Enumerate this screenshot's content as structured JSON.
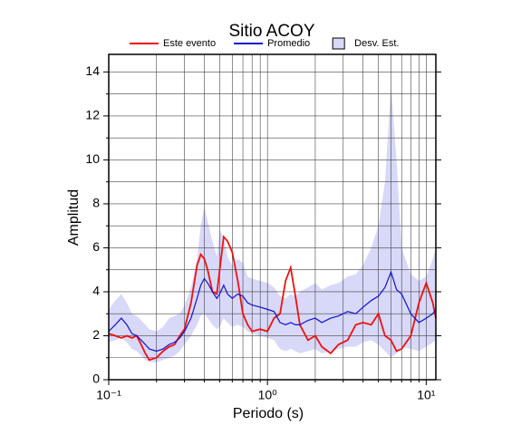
{
  "chart_data": {
    "type": "line",
    "title": "Sitio ACOY",
    "xlabel": "Periodo (s)",
    "ylabel": "Amplitud",
    "x": [
      0.1,
      0.11,
      0.12,
      0.13,
      0.14,
      0.15,
      0.16,
      0.17,
      0.18,
      0.2,
      0.22,
      0.24,
      0.26,
      0.28,
      0.3,
      0.33,
      0.36,
      0.38,
      0.4,
      0.42,
      0.45,
      0.48,
      0.5,
      0.53,
      0.56,
      0.6,
      0.65,
      0.7,
      0.75,
      0.8,
      0.9,
      1.0,
      1.1,
      1.2,
      1.3,
      1.4,
      1.5,
      1.6,
      1.8,
      2.0,
      2.2,
      2.5,
      2.8,
      3.2,
      3.6,
      4.0,
      4.5,
      5.0,
      5.5,
      6.0,
      6.5,
      7.0,
      8.0,
      9.0,
      10.0,
      11.0,
      11.5
    ],
    "series": [
      {
        "name": "Este evento",
        "color": "#ee1111",
        "values": [
          2.1,
          2.0,
          1.9,
          2.0,
          1.9,
          2.0,
          1.6,
          1.2,
          0.9,
          1.0,
          1.3,
          1.5,
          1.6,
          2.0,
          2.3,
          3.5,
          5.2,
          5.7,
          5.5,
          5.0,
          4.0,
          3.9,
          5.0,
          6.5,
          6.3,
          5.8,
          4.5,
          3.0,
          2.5,
          2.2,
          2.3,
          2.2,
          2.8,
          3.0,
          4.5,
          5.1,
          3.8,
          2.5,
          1.8,
          2.0,
          1.5,
          1.2,
          1.6,
          1.8,
          2.5,
          2.6,
          2.5,
          3.0,
          2.0,
          1.8,
          1.3,
          1.4,
          2.0,
          3.5,
          4.4,
          3.5,
          2.8
        ]
      },
      {
        "name": "Promedio",
        "color": "#1111cc",
        "values": [
          2.2,
          2.5,
          2.8,
          2.5,
          2.1,
          2.0,
          1.8,
          1.6,
          1.4,
          1.3,
          1.4,
          1.6,
          1.7,
          1.9,
          2.2,
          2.8,
          3.7,
          4.3,
          4.6,
          4.4,
          4.0,
          3.7,
          3.9,
          4.3,
          3.9,
          3.7,
          3.9,
          3.8,
          3.5,
          3.4,
          3.3,
          3.2,
          3.1,
          2.6,
          2.5,
          2.6,
          2.5,
          2.5,
          2.7,
          2.8,
          2.6,
          2.8,
          2.9,
          3.1,
          3.0,
          3.3,
          3.6,
          3.8,
          4.2,
          4.9,
          4.1,
          3.9,
          3.0,
          2.6,
          2.8,
          3.0,
          3.2
        ]
      }
    ],
    "band": {
      "name": "Desv. Est.",
      "color": "#d8d8f8",
      "upper": [
        3.2,
        3.6,
        3.9,
        3.5,
        3.0,
        2.9,
        2.7,
        2.5,
        2.3,
        2.2,
        2.4,
        2.8,
        2.9,
        3.0,
        3.4,
        4.2,
        5.5,
        7.0,
        7.9,
        7.2,
        6.3,
        5.6,
        6.8,
        6.5,
        5.6,
        5.2,
        5.5,
        5.3,
        4.7,
        4.6,
        4.5,
        4.4,
        4.2,
        3.8,
        3.7,
        3.9,
        3.8,
        4.0,
        4.2,
        4.4,
        4.1,
        4.3,
        4.4,
        4.7,
        4.8,
        5.2,
        6.0,
        7.0,
        9.0,
        13.4,
        10.0,
        6.0,
        4.8,
        4.5,
        4.7,
        5.5,
        6.0
      ],
      "lower": [
        1.7,
        1.8,
        1.9,
        1.7,
        1.4,
        1.3,
        1.1,
        0.9,
        0.8,
        0.8,
        0.9,
        1.0,
        1.1,
        1.3,
        1.6,
        2.0,
        2.5,
        2.9,
        3.0,
        2.8,
        2.5,
        2.3,
        2.4,
        2.8,
        2.6,
        2.4,
        2.5,
        2.4,
        2.2,
        2.1,
        2.0,
        1.9,
        1.8,
        1.4,
        1.3,
        1.4,
        1.3,
        1.2,
        1.3,
        1.4,
        1.2,
        1.3,
        1.4,
        1.5,
        1.5,
        1.7,
        1.8,
        1.6,
        1.3,
        1.0,
        1.2,
        1.5,
        1.4,
        1.3,
        1.5,
        1.7,
        1.8
      ]
    },
    "xscale": "log",
    "grid": true,
    "xlim": [
      0.1,
      11.5
    ],
    "ylim": [
      0,
      14.8
    ],
    "xticks": [
      {
        "value": 0.1,
        "label": "10⁻¹"
      },
      {
        "value": 1,
        "label": "10⁰"
      },
      {
        "value": 10,
        "label": "10¹"
      }
    ],
    "xminor": [
      0.2,
      0.3,
      0.4,
      0.5,
      0.6,
      0.7,
      0.8,
      0.9,
      2,
      3,
      4,
      5,
      6,
      7,
      8,
      9
    ],
    "yticks": [
      0,
      2,
      4,
      6,
      8,
      10,
      12,
      14
    ],
    "yminor": [
      1,
      3,
      5,
      7,
      9,
      11,
      13
    ]
  }
}
